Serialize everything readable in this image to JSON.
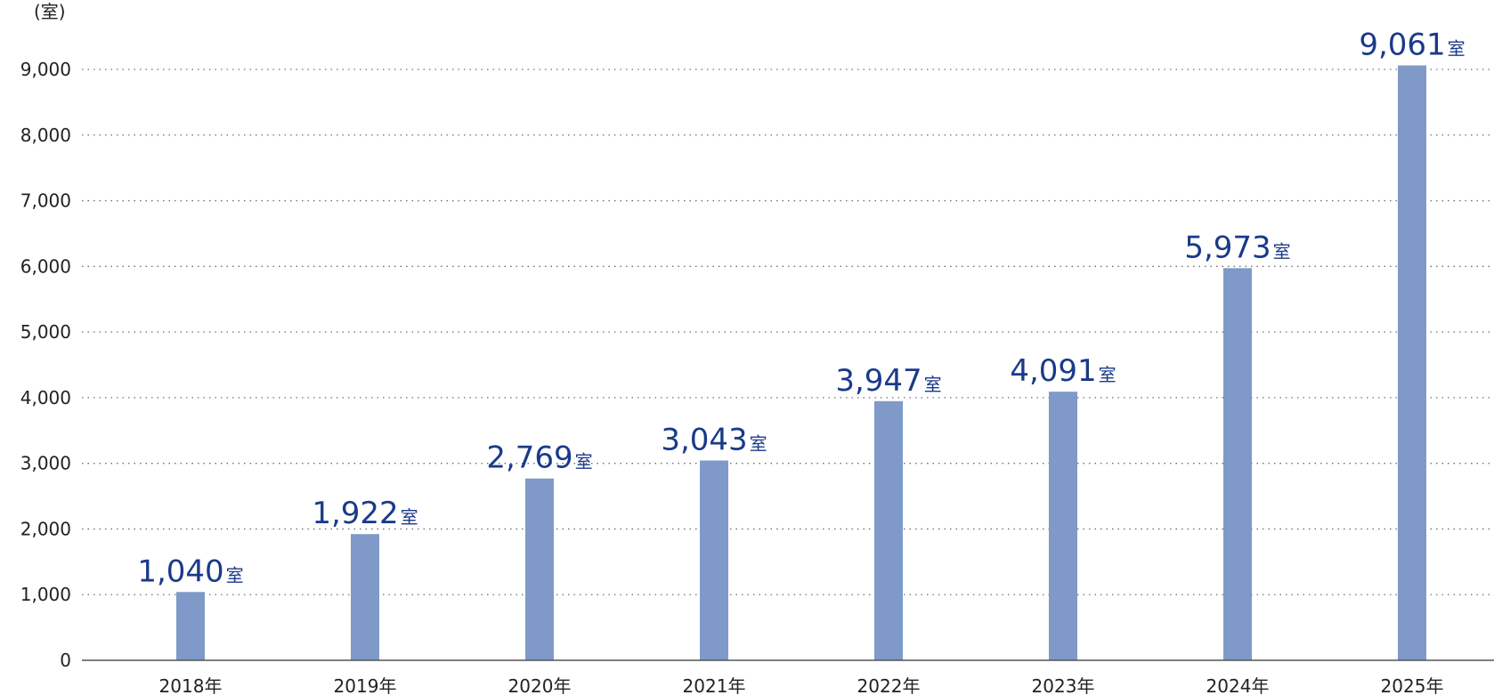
{
  "chart_data": {
    "type": "bar",
    "unit_label": "(室)",
    "categories": [
      "2018年",
      "2019年",
      "2020年",
      "2021年",
      "2022年",
      "2023年",
      "2024年",
      "2025年"
    ],
    "values": [
      1040,
      1922,
      2769,
      3043,
      3947,
      4091,
      5973,
      9061
    ],
    "value_labels": [
      "1,040",
      "1,922",
      "2,769",
      "3,043",
      "3,947",
      "4,091",
      "5,973",
      "9,061"
    ],
    "value_unit": "室",
    "ylim": [
      0,
      9000
    ],
    "y_ticks": [
      "0",
      "1,000",
      "2,000",
      "3,000",
      "4,000",
      "5,000",
      "6,000",
      "7,000",
      "8,000",
      "9,000"
    ],
    "y_tick_values": [
      0,
      1000,
      2000,
      3000,
      4000,
      5000,
      6000,
      7000,
      8000,
      9000
    ],
    "grid": true,
    "legend": "none",
    "colors": {
      "bar": "#7f9ac8",
      "value_label": "#1a3a8a",
      "axis_text": "#222222",
      "grid": "#6f6f6f"
    }
  }
}
